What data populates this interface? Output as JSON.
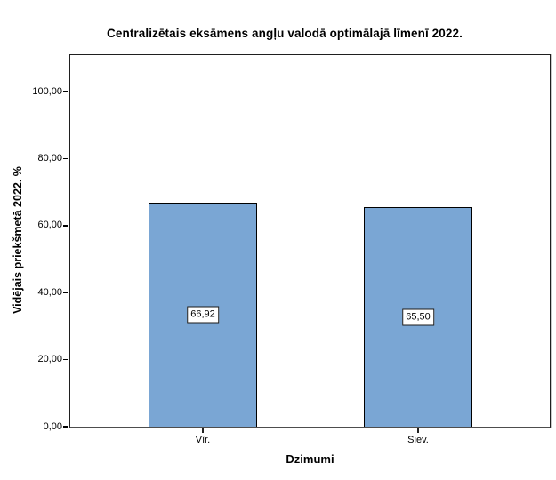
{
  "chart_data": {
    "type": "bar",
    "title": "Centralizētais eksāmens angļu valodā optimālajā līmenī 2022.",
    "xlabel": "Dzimumi",
    "ylabel": "Vidējais priekšmetā 2022. %",
    "categories": [
      "Vīr.",
      "Siev."
    ],
    "values": [
      66.92,
      65.5
    ],
    "value_labels": [
      "66,92",
      "65,50"
    ],
    "yticks": [
      0,
      20,
      40,
      60,
      80,
      100
    ],
    "ytick_labels": [
      "0,00",
      "20,00",
      "40,00",
      "60,00",
      "80,00",
      "100,00"
    ],
    "ylim": [
      0,
      111
    ],
    "grid": false,
    "legend": null,
    "bar_color": "#7AA6D4",
    "bar_border_color": "#000000",
    "axis_line_color": "#4d4d4d"
  }
}
